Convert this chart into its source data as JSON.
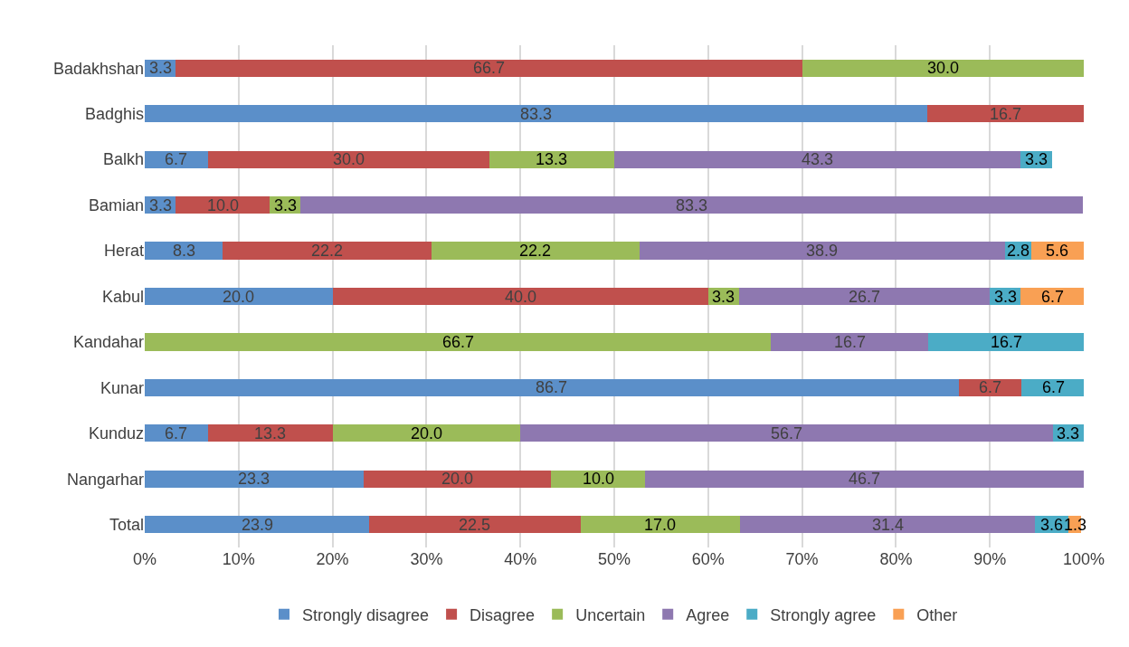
{
  "chart_data": {
    "type": "bar",
    "orientation": "horizontal",
    "stacked": true,
    "grid": "x",
    "legend": "bottom",
    "categories": [
      "Badakhshan",
      "Badghis",
      "Balkh",
      "Bamian",
      "Herat",
      "Kabul",
      "Kandahar",
      "Kunar",
      "Kunduz",
      "Nangarhar",
      "Total"
    ],
    "series": [
      {
        "name": "Strongly disagree",
        "color": "#5b8fc9",
        "values": [
          3.3,
          83.3,
          6.7,
          3.3,
          8.3,
          20.0,
          null,
          86.7,
          6.7,
          23.3,
          23.9
        ],
        "value_labels": [
          "3.3",
          "83.3",
          "6.7",
          "3.3",
          "8.3",
          "20.0",
          null,
          "86.7",
          "6.7",
          "23.3",
          "23.9"
        ]
      },
      {
        "name": "Disagree",
        "color": "#c0504d",
        "values": [
          66.7,
          16.7,
          30.0,
          10.0,
          22.2,
          40.0,
          null,
          6.7,
          13.3,
          20.0,
          22.5
        ],
        "value_labels": [
          "66.7",
          "16.7",
          "30.0",
          "10.0",
          "22.2",
          "40.0",
          null,
          "6.7",
          "13.3",
          "20.0",
          "22.5"
        ]
      },
      {
        "name": "Uncertain",
        "color": "#9bbb59",
        "values": [
          30.0,
          null,
          13.3,
          3.3,
          22.2,
          3.3,
          66.7,
          null,
          20.0,
          10.0,
          17.0
        ],
        "value_labels": [
          "30.0",
          null,
          "13.3",
          "3.3",
          "22.2",
          "3.3",
          "66.7",
          null,
          "20.0",
          "10.0",
          "17.0"
        ]
      },
      {
        "name": "Agree",
        "color": "#8e78b0",
        "values": [
          null,
          null,
          43.3,
          83.3,
          38.9,
          26.7,
          16.7,
          null,
          56.7,
          46.7,
          31.4
        ],
        "value_labels": [
          null,
          null,
          "43.3",
          "83.3",
          "38.9",
          "26.7",
          "16.7",
          null,
          "56.7",
          "46.7",
          "31.4"
        ]
      },
      {
        "name": "Strongly agree",
        "color": "#4bacc6",
        "values": [
          null,
          null,
          3.3,
          null,
          2.8,
          3.3,
          16.7,
          6.7,
          3.3,
          null,
          3.6
        ],
        "value_labels": [
          null,
          null,
          "3.3",
          null,
          "2.8",
          "3.3",
          "16.7",
          "6.7",
          "3.3",
          null,
          "3.6"
        ]
      },
      {
        "name": "Other",
        "color": "#f9a054",
        "values": [
          null,
          null,
          null,
          null,
          5.6,
          6.7,
          null,
          null,
          null,
          null,
          1.3
        ],
        "value_labels": [
          null,
          null,
          null,
          null,
          "5.6",
          "6.7",
          null,
          null,
          null,
          null,
          "1.3"
        ]
      }
    ],
    "xlim": [
      0,
      100
    ],
    "xticks": [
      {
        "value": 0,
        "label": "0%"
      },
      {
        "value": 10,
        "label": "10%"
      },
      {
        "value": 20,
        "label": "20%"
      },
      {
        "value": 30,
        "label": "30%"
      },
      {
        "value": 40,
        "label": "40%"
      },
      {
        "value": 50,
        "label": "50%"
      },
      {
        "value": 60,
        "label": "60%"
      },
      {
        "value": 70,
        "label": "70%"
      },
      {
        "value": 80,
        "label": "80%"
      },
      {
        "value": 90,
        "label": "90%"
      },
      {
        "value": 100,
        "label": "100%"
      }
    ]
  }
}
